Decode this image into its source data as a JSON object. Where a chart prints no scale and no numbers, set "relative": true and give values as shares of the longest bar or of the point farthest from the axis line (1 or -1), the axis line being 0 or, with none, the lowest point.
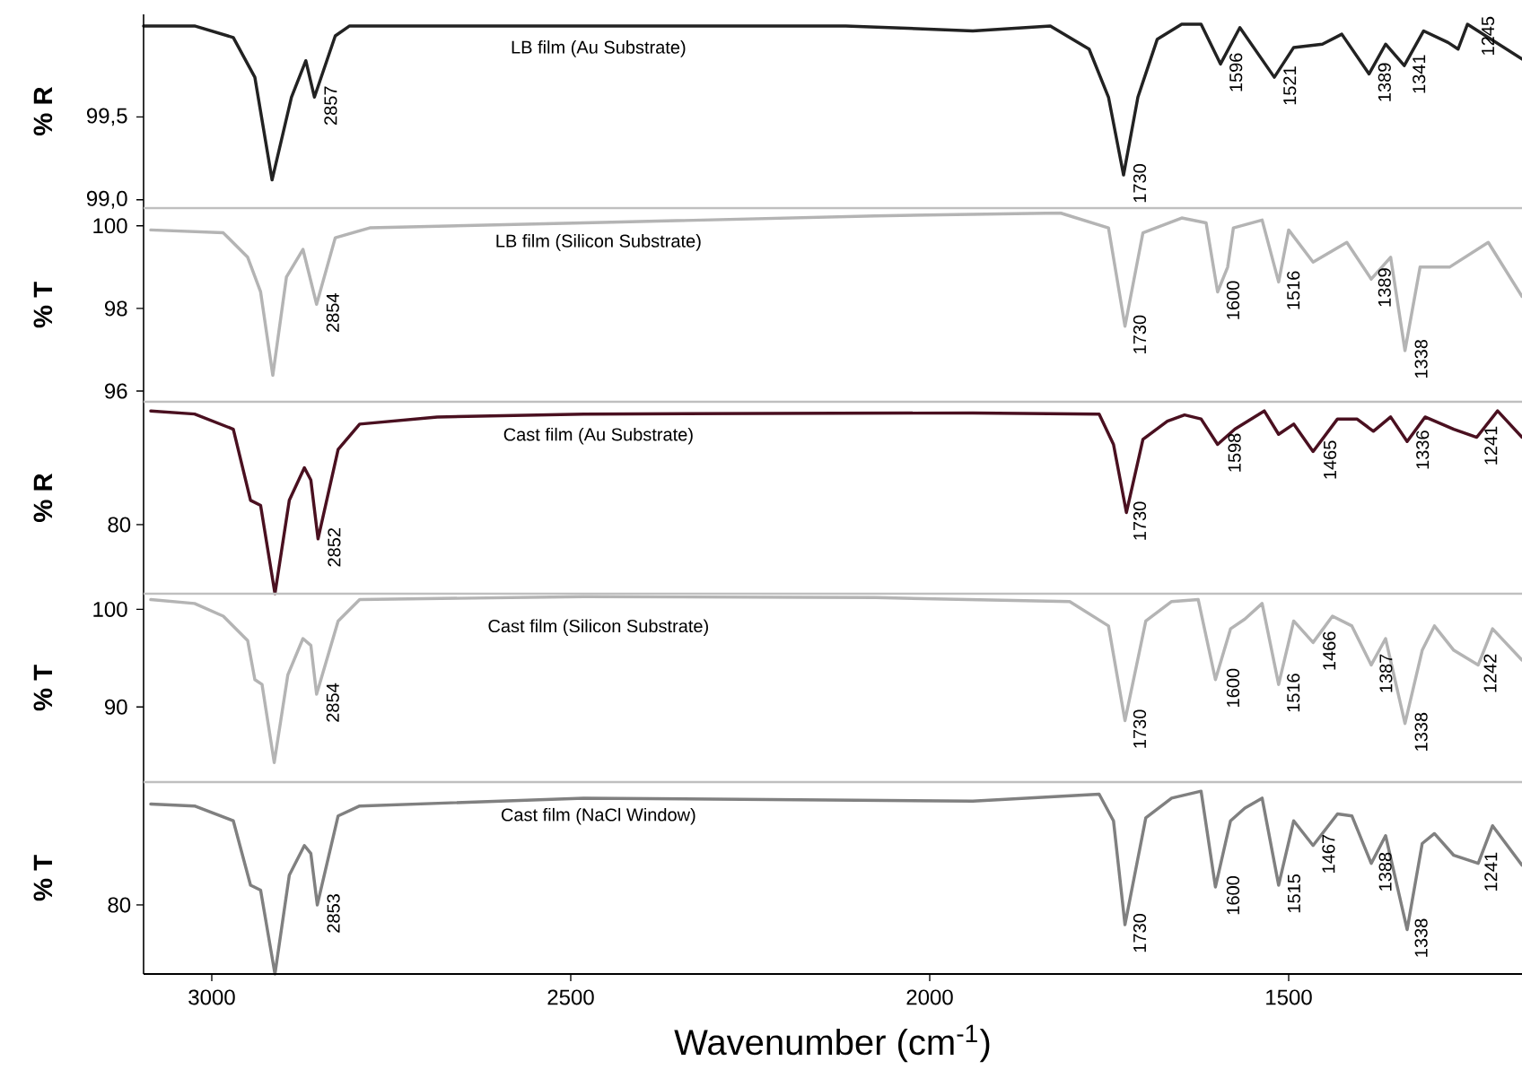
{
  "chart_data": [
    {
      "type": "line",
      "title": "LB film (Au Substrate)",
      "ylabel": "% R",
      "color": "#222222",
      "tick_labels": "y",
      "xlim": [
        3095,
        1175
      ],
      "ylim": [
        98.95,
        100.12
      ],
      "yticks": [
        {
          "value": 99.0,
          "label": "99,0"
        },
        {
          "value": 99.5,
          "label": "99,5"
        }
      ],
      "x": [
        3095,
        3024,
        2970,
        2940,
        2916,
        2889,
        2869,
        2857,
        2828,
        2808,
        2482,
        2117,
        1940,
        1832,
        1778,
        1751,
        1730,
        1710,
        1683,
        1649,
        1622,
        1595,
        1568,
        1520,
        1493,
        1453,
        1426,
        1388,
        1365,
        1339,
        1312,
        1278,
        1264,
        1251,
        1175
      ],
      "values": [
        100.05,
        100.05,
        99.98,
        99.74,
        99.12,
        99.62,
        99.84,
        99.62,
        99.99,
        100.05,
        100.05,
        100.05,
        100.02,
        100.05,
        99.91,
        99.62,
        99.15,
        99.62,
        99.97,
        100.06,
        100.06,
        99.82,
        100.04,
        99.74,
        99.92,
        99.94,
        100.0,
        99.76,
        99.94,
        99.81,
        100.02,
        99.95,
        99.91,
        100.06,
        99.85
      ],
      "annotations": [
        {
          "text": "2857",
          "x": 2857,
          "y": 99.62
        },
        {
          "text": "1730",
          "x": 1730,
          "y": 99.15
        },
        {
          "text": "1596",
          "x": 1596,
          "y": 99.82
        },
        {
          "text": "1521",
          "x": 1521,
          "y": 99.74
        },
        {
          "text": "1389",
          "x": 1389,
          "y": 99.76
        },
        {
          "text": "1341",
          "x": 1341,
          "y": 99.81
        },
        {
          "text": "1245",
          "x": 1245,
          "y": 100.04
        }
      ]
    },
    {
      "type": "line",
      "title": "LB film (Silicon Substrate)",
      "ylabel": "% T",
      "color": "#b4b4b4",
      "tick_labels": "y",
      "xlim": [
        3095,
        1175
      ],
      "ylim": [
        95.74,
        100.43
      ],
      "yticks": [
        96,
        98,
        100
      ],
      "x": [
        3085,
        2984,
        2950,
        2932,
        2915,
        2896,
        2873,
        2854,
        2828,
        2780,
        2482,
        2076,
        1818,
        1751,
        1728,
        1703,
        1649,
        1615,
        1599,
        1585,
        1577,
        1537,
        1514,
        1500,
        1466,
        1419,
        1385,
        1358,
        1338,
        1317,
        1276,
        1222,
        1175
      ],
      "values": [
        99.9,
        99.83,
        99.24,
        98.4,
        96.38,
        98.76,
        99.43,
        98.1,
        99.71,
        99.95,
        100.07,
        100.24,
        100.31,
        99.95,
        97.57,
        99.83,
        100.19,
        100.07,
        98.4,
        99.0,
        99.95,
        100.14,
        98.64,
        99.9,
        99.12,
        99.6,
        98.71,
        99.24,
        96.98,
        99.0,
        99.0,
        99.6,
        98.29
      ],
      "annotations": [
        {
          "text": "2854",
          "x": 2854,
          "y": 98.1
        },
        {
          "text": "1730",
          "x": 1730,
          "y": 97.57
        },
        {
          "text": "1600",
          "x": 1600,
          "y": 98.4
        },
        {
          "text": "1516",
          "x": 1516,
          "y": 98.64
        },
        {
          "text": "1389",
          "x": 1389,
          "y": 98.71
        },
        {
          "text": "1338",
          "x": 1338,
          "y": 96.98
        }
      ]
    },
    {
      "type": "line",
      "title": "Cast film (Au Substrate)",
      "ylabel": "% R",
      "color": "#4a1020",
      "tick_labels": "y",
      "relative": true,
      "xlim": [
        3095,
        1175
      ],
      "x": [
        3085,
        3024,
        2970,
        2946,
        2932,
        2912,
        2892,
        2871,
        2862,
        2852,
        2824,
        2794,
        2686,
        2482,
        1940,
        1764,
        1744,
        1726,
        1703,
        1669,
        1645,
        1622,
        1599,
        1575,
        1534,
        1514,
        1493,
        1466,
        1432,
        1405,
        1382,
        1358,
        1335,
        1310,
        1270,
        1238,
        1209,
        1175
      ],
      "values": [
        1.0,
        0.983,
        0.9,
        0.511,
        0.483,
        0.0,
        0.511,
        0.689,
        0.622,
        0.3,
        0.789,
        0.928,
        0.967,
        0.983,
        0.989,
        0.983,
        0.817,
        0.444,
        0.844,
        0.944,
        0.978,
        0.956,
        0.817,
        0.9,
        1.0,
        0.872,
        0.928,
        0.778,
        0.956,
        0.956,
        0.889,
        0.967,
        0.833,
        0.967,
        0.9,
        0.856,
        1.0,
        0.856
      ],
      "annotations": [
        "80",
        {
          "text": "2852",
          "x": 2852,
          "y": 0.3
        },
        {
          "text": "1730",
          "x": 1730,
          "y": 0.444
        },
        {
          "text": "1598",
          "x": 1598,
          "y": 0.817
        },
        {
          "text": "1465",
          "x": 1465,
          "y": 0.778
        },
        {
          "text": "1336",
          "x": 1336,
          "y": 0.833
        },
        {
          "text": "1241",
          "x": 1241,
          "y": 0.856
        }
      ]
    },
    {
      "type": "line",
      "title": "Cast film (Silicon Substrate)",
      "ylabel": "% T",
      "color": "#b4b4b4",
      "tick_labels": "y",
      "xlim": [
        3095,
        1175
      ],
      "ylim": [
        82.3,
        101.6
      ],
      "yticks": [
        90,
        100
      ],
      "x": [
        3085,
        3024,
        2984,
        2950,
        2940,
        2930,
        2913,
        2894,
        2873,
        2862,
        2854,
        2824,
        2794,
        2482,
        2076,
        1805,
        1751,
        1728,
        1699,
        1663,
        1626,
        1602,
        1581,
        1561,
        1537,
        1514,
        1493,
        1466,
        1439,
        1412,
        1385,
        1365,
        1338,
        1314,
        1297,
        1270,
        1236,
        1216,
        1175
      ],
      "values": [
        101.0,
        100.6,
        99.3,
        96.8,
        92.8,
        92.3,
        84.3,
        93.3,
        97.0,
        96.3,
        91.3,
        98.8,
        101.0,
        101.3,
        101.2,
        100.8,
        98.3,
        88.6,
        98.8,
        100.8,
        101.0,
        92.8,
        98.0,
        99.0,
        100.6,
        92.3,
        98.8,
        96.6,
        99.3,
        98.3,
        94.3,
        97.0,
        88.3,
        95.8,
        98.3,
        95.8,
        94.3,
        98.0,
        94.8
      ],
      "annotations": [
        {
          "text": "2854",
          "x": 2854,
          "y": 91.3
        },
        {
          "text": "1730",
          "x": 1730,
          "y": 88.6
        },
        {
          "text": "1600",
          "x": 1600,
          "y": 92.8
        },
        {
          "text": "1516",
          "x": 1516,
          "y": 92.3
        },
        {
          "text": "1466",
          "x": 1466,
          "y": 96.6
        },
        {
          "text": "1387",
          "x": 1387,
          "y": 94.3
        },
        {
          "text": "1338",
          "x": 1338,
          "y": 88.3
        },
        {
          "text": "1242",
          "x": 1242,
          "y": 94.3
        }
      ]
    },
    {
      "type": "line",
      "title": "Cast film (NaCl Window)",
      "ylabel": "% T",
      "xlabel": "Wavenumber (cm$^{-1}$)",
      "color": "#808080",
      "relative": true,
      "xlim": [
        3095,
        1175
      ],
      "xticks": [
        3000,
        2500,
        2000,
        1500
      ],
      "x": [
        3085,
        3024,
        2970,
        2946,
        2932,
        2912,
        2892,
        2871,
        2862,
        2853,
        2824,
        2794,
        2482,
        1940,
        1764,
        1744,
        1728,
        1699,
        1663,
        1622,
        1602,
        1581,
        1561,
        1537,
        1514,
        1493,
        1466,
        1432,
        1412,
        1385,
        1365,
        1335,
        1314,
        1297,
        1270,
        1236,
        1216,
        1175
      ],
      "values": [
        0.93,
        0.919,
        0.838,
        0.486,
        0.459,
        0.0,
        0.541,
        0.703,
        0.659,
        0.378,
        0.865,
        0.919,
        0.962,
        0.946,
        0.984,
        0.838,
        0.27,
        0.854,
        0.962,
        1.0,
        0.476,
        0.838,
        0.908,
        0.962,
        0.486,
        0.838,
        0.703,
        0.876,
        0.865,
        0.605,
        0.757,
        0.243,
        0.714,
        0.768,
        0.649,
        0.605,
        0.811,
        0.595
      ],
      "annotations": [
        "80",
        {
          "text": "2853",
          "x": 2853,
          "y": 0.378
        },
        {
          "text": "1730",
          "x": 1730,
          "y": 0.27
        },
        {
          "text": "1600",
          "x": 1600,
          "y": 0.476
        },
        {
          "text": "1515",
          "x": 1515,
          "y": 0.486
        },
        {
          "text": "1467",
          "x": 1467,
          "y": 0.703
        },
        {
          "text": "1388",
          "x": 1388,
          "y": 0.605
        },
        {
          "text": "1338",
          "x": 1338,
          "y": 0.243
        },
        {
          "text": "1241",
          "x": 1241,
          "y": 0.605
        }
      ]
    }
  ]
}
